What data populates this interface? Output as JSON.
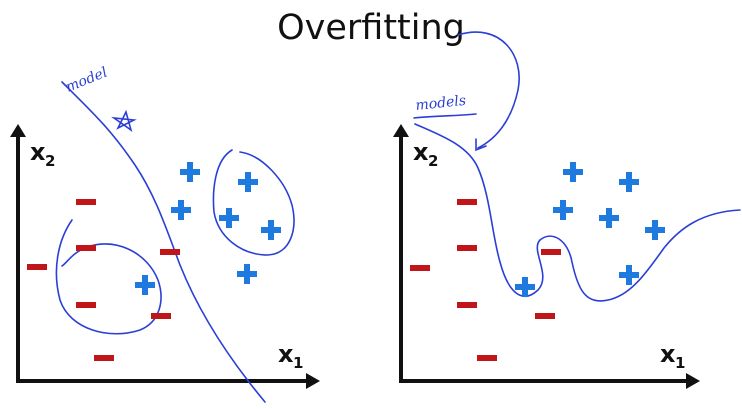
{
  "title": "Overfitting",
  "colors": {
    "positive": "#1f7ae0",
    "negative": "#c0161a",
    "pen": "#2b3fd6",
    "axis": "#111111"
  },
  "left_plot": {
    "y_axis_label": "x",
    "y_axis_sub": "2",
    "x_axis_label": "x",
    "x_axis_sub": "1",
    "annotation": "model",
    "positives": [
      [
        190,
        172
      ],
      [
        248,
        182
      ],
      [
        181,
        210
      ],
      [
        229,
        218
      ],
      [
        271,
        230
      ],
      [
        145,
        285
      ],
      [
        247,
        274
      ]
    ],
    "negatives": [
      [
        86,
        202
      ],
      [
        86,
        248
      ],
      [
        170,
        252
      ],
      [
        37,
        267
      ],
      [
        86,
        305
      ],
      [
        161,
        316
      ],
      [
        104,
        358
      ]
    ]
  },
  "right_plot": {
    "y_axis_label": "x",
    "y_axis_sub": "2",
    "x_axis_label": "x",
    "x_axis_sub": "1",
    "annotation": "models",
    "positives": [
      [
        573,
        172
      ],
      [
        629,
        182
      ],
      [
        563,
        210
      ],
      [
        609,
        218
      ],
      [
        655,
        230
      ],
      [
        525,
        287
      ],
      [
        629,
        275
      ]
    ],
    "negatives": [
      [
        467,
        202
      ],
      [
        467,
        248
      ],
      [
        551,
        252
      ],
      [
        420,
        268
      ],
      [
        467,
        305
      ],
      [
        545,
        316
      ],
      [
        487,
        358
      ]
    ]
  }
}
